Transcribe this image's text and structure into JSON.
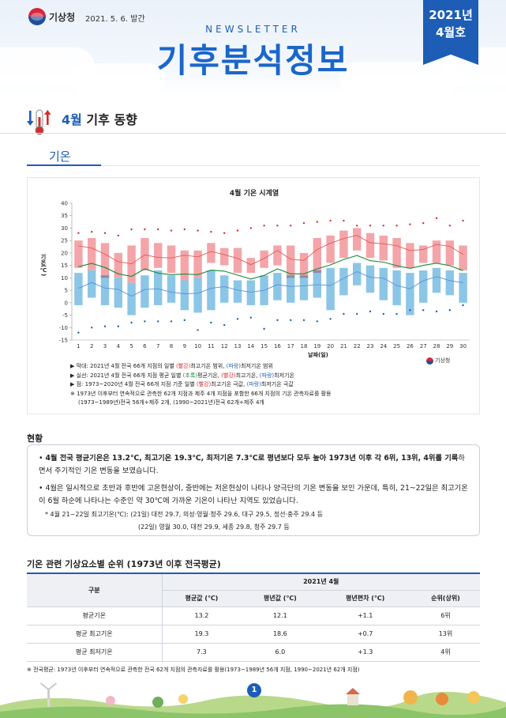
{
  "header": {
    "agency": "기상청",
    "issue_date": "2021. 5. 6. 발간",
    "newsletter_label": "NEWSLETTER",
    "title": "기후분석정보",
    "edition_year": "2021년",
    "edition_month": "4월호"
  },
  "section": {
    "title_highlight": "4월",
    "title_rest": " 기후 동향",
    "subtitle": "기온"
  },
  "chart_data": {
    "type": "bar",
    "title": "4월 기온 시계열",
    "ylabel": "기온(℃)",
    "xlabel": "날짜(일)",
    "ylim": [
      -15,
      40
    ],
    "yticks": [
      -15,
      -10,
      -5,
      0,
      5,
      10,
      15,
      20,
      25,
      30,
      35,
      40
    ],
    "x": [
      1,
      2,
      3,
      4,
      5,
      6,
      7,
      8,
      9,
      10,
      11,
      12,
      13,
      14,
      15,
      16,
      17,
      18,
      19,
      20,
      21,
      22,
      23,
      24,
      25,
      26,
      27,
      28,
      29,
      30
    ],
    "colors": {
      "range_max": "#f4a5a9",
      "range_min": "#8cc6e6",
      "normal_band": "#8d7ba0",
      "mean": "#1b8a3a",
      "normal_max": "#e05a5a",
      "normal_min": "#5b8fd6",
      "extreme_max": "#d62b2b",
      "extreme_min": "#1d5db5"
    },
    "series": [
      {
        "name": "2021년 4월 전국 66개 지점의 일별 최고기온 범위 (상한)",
        "values": [
          25,
          26,
          24,
          20,
          23,
          26,
          24,
          23,
          21,
          21,
          24,
          22,
          22,
          18,
          21,
          23,
          23,
          20,
          26,
          27,
          29,
          30,
          28,
          27,
          26,
          24,
          23,
          25,
          25,
          23
        ]
      },
      {
        "name": "2021년 4월 전국 66개 지점의 일별 최고기온 범위 (하한)",
        "values": [
          14,
          13,
          10,
          10,
          8,
          13,
          14,
          12,
          9,
          10,
          16,
          15,
          12,
          12,
          14,
          15,
          10,
          10,
          12,
          16,
          18,
          21,
          18,
          17,
          14,
          14,
          16,
          16,
          15,
          13
        ]
      },
      {
        "name": "2021년 4월 전국 66개 지점의 일별 최저기온 범위 (상한)",
        "values": [
          12,
          13,
          11,
          10,
          8,
          11,
          13,
          11,
          9,
          10,
          13,
          11,
          9,
          9,
          11,
          12,
          11,
          11,
          13,
          14,
          14,
          16,
          15,
          14,
          13,
          12,
          13,
          14,
          13,
          12
        ]
      },
      {
        "name": "2021년 4월 전국 66개 지점의 일별 최저기온 범위 (하한)",
        "values": [
          -1,
          2,
          -1,
          -2,
          -5,
          -2,
          -1,
          0,
          -3,
          -4,
          -3,
          0,
          0,
          -1,
          -1,
          1,
          0,
          1,
          2,
          -3,
          3,
          7,
          4,
          1,
          -1,
          -5,
          0,
          4,
          3,
          0
        ]
      },
      {
        "name": "2021년 4월 전국 66개 지점 평균 일별 평균기온",
        "values": [
          14.5,
          15.8,
          14.2,
          11.6,
          10.6,
          13.6,
          11.9,
          11.3,
          11.5,
          11.3,
          13.1,
          12.7,
          11.1,
          9.5,
          11.0,
          13.6,
          11.6,
          11.6,
          13.6,
          15.2,
          17.4,
          19.0,
          16.9,
          16.3,
          14.9,
          13.8,
          15.0,
          15.9,
          14.9,
          12.9
        ]
      },
      {
        "name": "2021년 4월 전국 66개 지점 평균 일별 최고기온",
        "values": [
          22.8,
          22.0,
          19.5,
          16.5,
          15.6,
          19.2,
          18.2,
          18.0,
          19.1,
          18.4,
          20.6,
          19.3,
          17.8,
          15.3,
          17.8,
          21.0,
          17.5,
          17.0,
          21.4,
          23.9,
          25.8,
          27.1,
          24.1,
          23.7,
          22.9,
          21.0,
          21.4,
          23.4,
          22.7,
          19.4
        ]
      },
      {
        "name": "2021년 4월 전국 66개 지점 평균 일별 최저기온",
        "values": [
          5.8,
          8.1,
          5.9,
          5.4,
          2.6,
          5.3,
          5.6,
          4.2,
          3.6,
          3.8,
          5.8,
          6.5,
          5.1,
          4.2,
          5.0,
          7.3,
          6.5,
          6.8,
          7.3,
          6.9,
          9.8,
          12.5,
          10.2,
          9.9,
          6.9,
          5.6,
          8.8,
          10.5,
          8.9,
          8.0
        ]
      },
      {
        "name": "1973~2020년 4월 전국 66개 지점 기준 일별 최고기온 극값",
        "values": [
          28,
          28.5,
          28,
          27,
          29.5,
          29.5,
          29.5,
          29,
          29.5,
          29,
          28.5,
          28,
          29,
          30,
          31,
          31,
          31,
          32,
          32.5,
          33,
          33,
          31,
          31,
          31,
          31,
          31.5,
          32,
          34,
          31,
          33
        ]
      },
      {
        "name": "1973~2020년 4월 전국 66개 지점 기준 일별 최저기온 극값",
        "values": [
          -12,
          -10,
          -9.5,
          -9.5,
          -8,
          -7.5,
          -7.5,
          -7.5,
          -7,
          -11,
          -8,
          -9,
          -6.5,
          -6,
          -10.5,
          -7,
          -7,
          -7,
          -7.5,
          -6.5,
          -4.5,
          -4.5,
          -3.5,
          -4.5,
          -4.5,
          -3,
          -3,
          -3.5,
          -3,
          -1
        ]
      }
    ],
    "normal_band": {
      "lower": [
        10,
        10,
        10,
        10,
        10,
        10,
        10,
        11,
        11,
        11,
        11,
        11,
        11,
        11,
        11,
        12,
        12,
        12,
        12,
        12,
        12,
        12,
        12,
        13,
        13,
        13,
        13,
        13,
        13,
        13
      ],
      "upper": [
        13,
        13,
        13,
        13,
        13,
        13,
        13,
        14,
        14,
        14,
        14,
        14,
        14,
        14,
        14,
        15,
        15,
        15,
        15,
        15,
        15,
        15,
        15,
        16,
        16,
        16,
        16,
        16,
        16,
        16
      ]
    },
    "legend": [
      {
        "prefix": "▶ 막대: 2021년 4월 전국 66개 지점의 일별 ",
        "red": "(빨강)",
        "mid1": "최고기온 범위, ",
        "blue": "(파랑)",
        "tail": "최저기온 범위"
      },
      {
        "prefix": "▶ 실선: 2021년 4월 전국 66개 지점 평균 일별 ",
        "green": "(초록)",
        "mid1": "평균기온, ",
        "red": "(빨강)",
        "mid2": "최고기온, ",
        "blue": "(파랑)",
        "tail": "최저기온"
      },
      {
        "prefix": "▶ 점: 1973~2020년 4월 전국 66개 지점 기준 일별 ",
        "red": "(빨강)",
        "mid1": "최고기온 극값, ",
        "blue": "(파랑)",
        "tail": "최저기온 극값"
      }
    ],
    "footnote1": "※ 1973년 이후부터 연속적으로 관측한 62개 지점과 제주 4개 지점을 포함한 66개 지점의 기온 관측자료를 활용",
    "footnote2": "(1973~1989년)전국 56개+제주 2개, (1990~2021년)전국 62개+제주 4개",
    "source_logo_text": "기상청"
  },
  "status": {
    "title": "현황",
    "bullet1_bold": "4월 전국 평균기온은 13.2℃, 최고기온 19.3℃, 최저기온 7.3℃로 평년보다 모두 높아 1973년 이후 각 6위, 13위, 4위를 기록",
    "bullet1_rest": "하면서 주기적인 기온 변동을 보였습니다.",
    "bullet2": "4월은 일시적으로 초반과 후반에 고온현상이, 중반에는 저온현상이 나타나 양극단의 기온 변동을 보인 가운데, 특히, 21~22일은 최고기온이 6월 하순에 나타나는 수준인 약 30℃에 가까운 기온이 나타난 지역도 있었습니다.",
    "note1": "* 4월 21~22일 최고기온(℃): (21일) 대전 29.7, 의성·영월·청주 29.6, 대구 29.5, 정선·충주 29.4 등",
    "note2": "(22일) 영월 30.0, 대전 29.9, 세종 29.8, 청주 29.7 등"
  },
  "table": {
    "title": "기온 관련 기상요소별 순위 (1973년 이후 전국평균)",
    "col_group": "구분",
    "span_header": "2021년 4월",
    "headers": [
      "평균값 (℃)",
      "평년값 (℃)",
      "평년편차 (℃)",
      "순위(상위)"
    ],
    "rows": [
      {
        "label": "평균기온",
        "cells": [
          "13.2",
          "12.1",
          "+1.1",
          "6위"
        ]
      },
      {
        "label": "평균 최고기온",
        "cells": [
          "19.3",
          "18.6",
          "+0.7",
          "13위"
        ]
      },
      {
        "label": "평균 최저기온",
        "cells": [
          "7.3",
          "6.0",
          "+1.3",
          "4위"
        ]
      }
    ],
    "note": "※ 전국평균: 1973년 이후부터 연속적으로 관측한 전국 62개 지점의 관측자료를 활용(1973~1989년 56개 지점, 1990~2021년 62개 지점)"
  },
  "footer": {
    "page_number": "1"
  }
}
